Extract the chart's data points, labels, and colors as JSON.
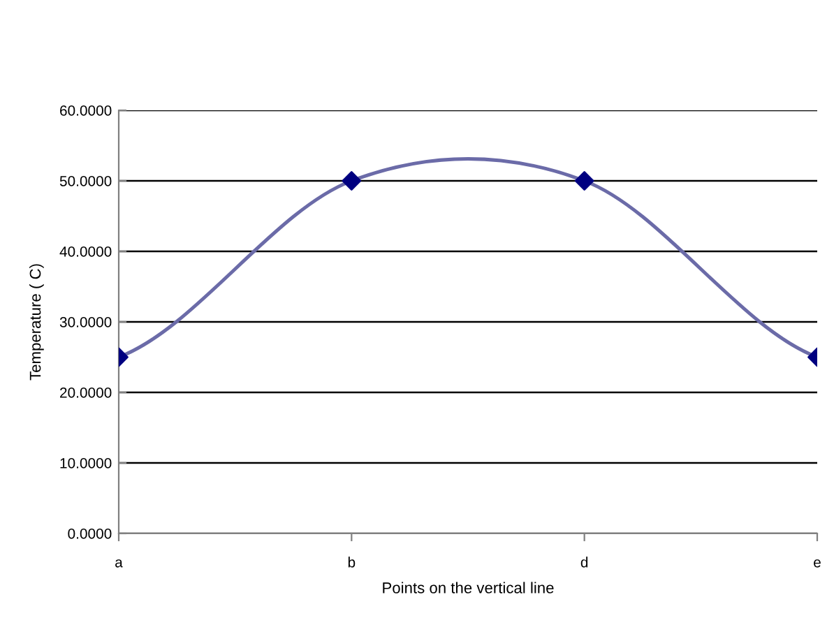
{
  "chart_data": {
    "type": "line",
    "xlabel": "Points on the vertical line",
    "ylabel": "Temperature ( C)",
    "categories": [
      "a",
      "b",
      "d",
      "e"
    ],
    "series": [
      {
        "color": "#6b6ba8",
        "colors": [
          "#000080",
          "#000080",
          "#000080",
          "#000080"
        ],
        "values": [
          25,
          50,
          50,
          25
        ]
      }
    ],
    "ylim": [
      0,
      60
    ],
    "yticks": [
      {
        "value": 0,
        "label": "0.0000"
      },
      {
        "value": 10,
        "label": "10.0000"
      },
      {
        "value": 20,
        "label": "20.0000"
      },
      {
        "value": 30,
        "label": "30.0000"
      },
      {
        "value": 40,
        "label": "40.0000"
      },
      {
        "value": 50,
        "label": "50.0000"
      },
      {
        "value": 60,
        "label": "60.0000"
      }
    ],
    "grid": "y",
    "marker": "diamond",
    "line_style": "solid",
    "legend": false
  }
}
